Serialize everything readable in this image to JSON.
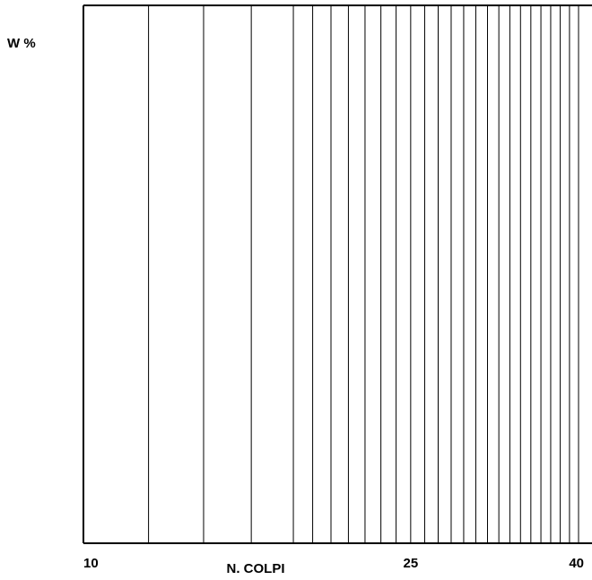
{
  "chart_data": {
    "type": "line",
    "title": "",
    "xlabel": "N. COLPI",
    "ylabel": "W %",
    "x_scale": "log",
    "xlim": [
      10,
      40
    ],
    "x_tick_labels": [
      {
        "value": 10,
        "label": "10"
      },
      {
        "value": 25,
        "label": "25"
      },
      {
        "value": 40,
        "label": "40"
      }
    ],
    "vertical_gridlines": [
      12,
      14,
      16,
      18,
      19,
      20,
      21,
      22,
      23,
      24,
      25,
      26,
      27,
      28,
      29,
      30,
      31,
      32,
      33,
      34,
      35,
      36,
      37,
      38,
      39,
      40
    ],
    "series": [],
    "grid": "vertical-only",
    "line_color": "#000000"
  }
}
